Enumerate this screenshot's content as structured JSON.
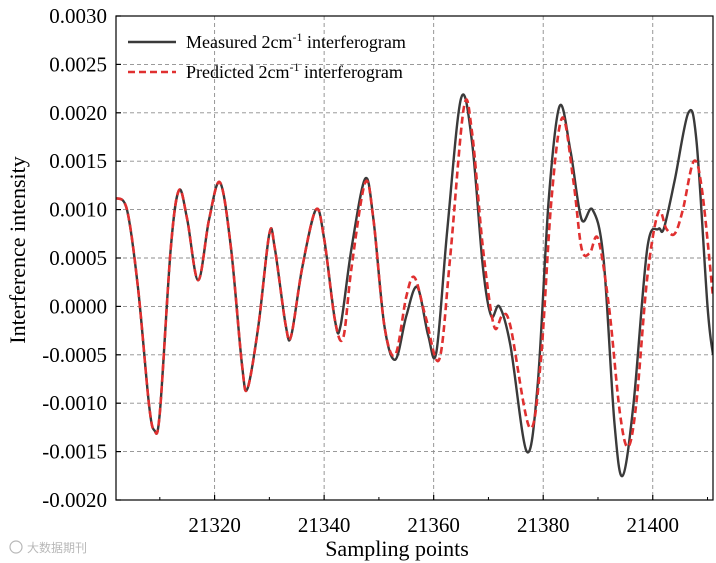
{
  "chart_data": {
    "type": "line",
    "xlabel": "Sampling points",
    "ylabel": "Interference intensity",
    "xlim": [
      21302,
      21411
    ],
    "ylim": [
      -0.002,
      0.003
    ],
    "x_ticks": [
      {
        "value": 21320,
        "label": "21320"
      },
      {
        "value": 21340,
        "label": "21340"
      },
      {
        "value": 21360,
        "label": "21360"
      },
      {
        "value": 21380,
        "label": "21380"
      },
      {
        "value": 21400,
        "label": "21400"
      }
    ],
    "y_ticks": [
      {
        "value": 0.003,
        "label": "0.0030"
      },
      {
        "value": 0.0025,
        "label": "0.0025"
      },
      {
        "value": 0.002,
        "label": "0.0020"
      },
      {
        "value": 0.0015,
        "label": "0.0015"
      },
      {
        "value": 0.001,
        "label": "0.0010"
      },
      {
        "value": 0.0005,
        "label": "0.0005"
      },
      {
        "value": 0.0,
        "label": "0.0000"
      },
      {
        "value": -0.0005,
        "label": "-0.0005"
      },
      {
        "value": -0.001,
        "label": "-0.0010"
      },
      {
        "value": -0.0015,
        "label": "-0.0015"
      },
      {
        "value": -0.002,
        "label": "-0.0020"
      }
    ],
    "grid": true,
    "legend_position": "top-left",
    "series": [
      {
        "name_main": "Measured 2cm",
        "name_sup": "-1",
        "name_rest": " interferogram",
        "color": "#3a3a3a",
        "dash": "solid",
        "points": [
          [
            21302,
            0.00112
          ],
          [
            21304,
            0.001
          ],
          [
            21306,
            0.0002
          ],
          [
            21308,
            -0.001
          ],
          [
            21309,
            -0.00128
          ],
          [
            21310,
            -0.0011
          ],
          [
            21312,
            0.0006
          ],
          [
            21313.5,
            0.0012
          ],
          [
            21315,
            0.0009
          ],
          [
            21317,
            0.00027
          ],
          [
            21319,
            0.0009
          ],
          [
            21321,
            0.00128
          ],
          [
            21323,
            0.0006
          ],
          [
            21325,
            -0.0006
          ],
          [
            21326,
            -0.00085
          ],
          [
            21328,
            -0.0002
          ],
          [
            21330,
            0.00075
          ],
          [
            21331,
            0.0006
          ],
          [
            21333,
            -0.0002
          ],
          [
            21334,
            -0.0003
          ],
          [
            21336,
            0.0004
          ],
          [
            21338.5,
            0.001
          ],
          [
            21340,
            0.0007
          ],
          [
            21342,
            -0.00015
          ],
          [
            21343,
            -0.0002
          ],
          [
            21345,
            0.0006
          ],
          [
            21347.5,
            0.00132
          ],
          [
            21349,
            0.0009
          ],
          [
            21351,
            -0.0002
          ],
          [
            21353,
            -0.00055
          ],
          [
            21355,
            -0.0001
          ],
          [
            21357,
            0.0002
          ],
          [
            21359,
            -0.0003
          ],
          [
            21360.5,
            -0.00047
          ],
          [
            21362.5,
            0.0008
          ],
          [
            21365,
            0.00215
          ],
          [
            21367,
            0.0017
          ],
          [
            21369,
            0.0004
          ],
          [
            21370.5,
            -0.0001
          ],
          [
            21372,
            0.0
          ],
          [
            21374,
            -0.0004
          ],
          [
            21377,
            -0.0015
          ],
          [
            21379,
            -0.0008
          ],
          [
            21381,
            0.0011
          ],
          [
            21383,
            0.00207
          ],
          [
            21385,
            0.0016
          ],
          [
            21387,
            0.0009
          ],
          [
            21389,
            0.001
          ],
          [
            21391,
            0.0005
          ],
          [
            21393,
            -0.0012
          ],
          [
            21394.5,
            -0.00175
          ],
          [
            21396.5,
            -0.001
          ],
          [
            21399,
            0.0006
          ],
          [
            21401,
            0.0008
          ],
          [
            21402,
            0.0008
          ],
          [
            21404,
            0.0013
          ],
          [
            21406.5,
            0.002
          ],
          [
            21408,
            0.0017
          ],
          [
            21410,
            0.0
          ],
          [
            21411,
            -0.0005
          ]
        ]
      },
      {
        "name_main": "Predicted 2cm",
        "name_sup": "-1",
        "name_rest": " interferogram",
        "color": "#e03030",
        "dash": "dashed",
        "points": [
          [
            21302,
            0.00112
          ],
          [
            21304,
            0.001
          ],
          [
            21306,
            0.0002
          ],
          [
            21308,
            -0.001
          ],
          [
            21309,
            -0.00128
          ],
          [
            21310,
            -0.0011
          ],
          [
            21312,
            0.0006
          ],
          [
            21313.5,
            0.0012
          ],
          [
            21315,
            0.0009
          ],
          [
            21317,
            0.00027
          ],
          [
            21319,
            0.0009
          ],
          [
            21321,
            0.00128
          ],
          [
            21323,
            0.0006
          ],
          [
            21325,
            -0.0006
          ],
          [
            21326,
            -0.00085
          ],
          [
            21328,
            -0.0002
          ],
          [
            21330,
            0.00075
          ],
          [
            21331,
            0.0006
          ],
          [
            21333,
            -0.0002
          ],
          [
            21334,
            -0.0003
          ],
          [
            21336,
            0.0004
          ],
          [
            21338.5,
            0.001
          ],
          [
            21340,
            0.0007
          ],
          [
            21342,
            -0.00015
          ],
          [
            21343.5,
            -0.00032
          ],
          [
            21345,
            0.0004
          ],
          [
            21347.5,
            0.00128
          ],
          [
            21349,
            0.0009
          ],
          [
            21351,
            -0.0002
          ],
          [
            21353,
            -0.0005
          ],
          [
            21355,
            0.0001
          ],
          [
            21356.5,
            0.0003
          ],
          [
            21358.5,
            -0.0001
          ],
          [
            21361,
            -0.00055
          ],
          [
            21363,
            0.0005
          ],
          [
            21365.5,
            0.00205
          ],
          [
            21367,
            0.0018
          ],
          [
            21369,
            0.0006
          ],
          [
            21371,
            -0.0002
          ],
          [
            21372.5,
            -0.0001
          ],
          [
            21374,
            -0.0002
          ],
          [
            21377.5,
            -0.00125
          ],
          [
            21379.5,
            -0.0006
          ],
          [
            21381.5,
            0.0011
          ],
          [
            21383.5,
            0.00195
          ],
          [
            21385.5,
            0.0013
          ],
          [
            21387,
            0.0006
          ],
          [
            21388.5,
            0.00055
          ],
          [
            21390,
            0.0007
          ],
          [
            21392,
            0.0
          ],
          [
            21394,
            -0.0011
          ],
          [
            21395.5,
            -0.00145
          ],
          [
            21397,
            -0.001
          ],
          [
            21399,
            0.0003
          ],
          [
            21401,
            0.00097
          ],
          [
            21402.5,
            0.0008
          ],
          [
            21404,
            0.00075
          ],
          [
            21405.5,
            0.001
          ],
          [
            21407.5,
            0.0015
          ],
          [
            21409,
            0.0012
          ],
          [
            21411,
            0.0001
          ]
        ]
      }
    ]
  },
  "watermark": {
    "icon": "creative-commons-icon",
    "text": "大数据期刊"
  }
}
